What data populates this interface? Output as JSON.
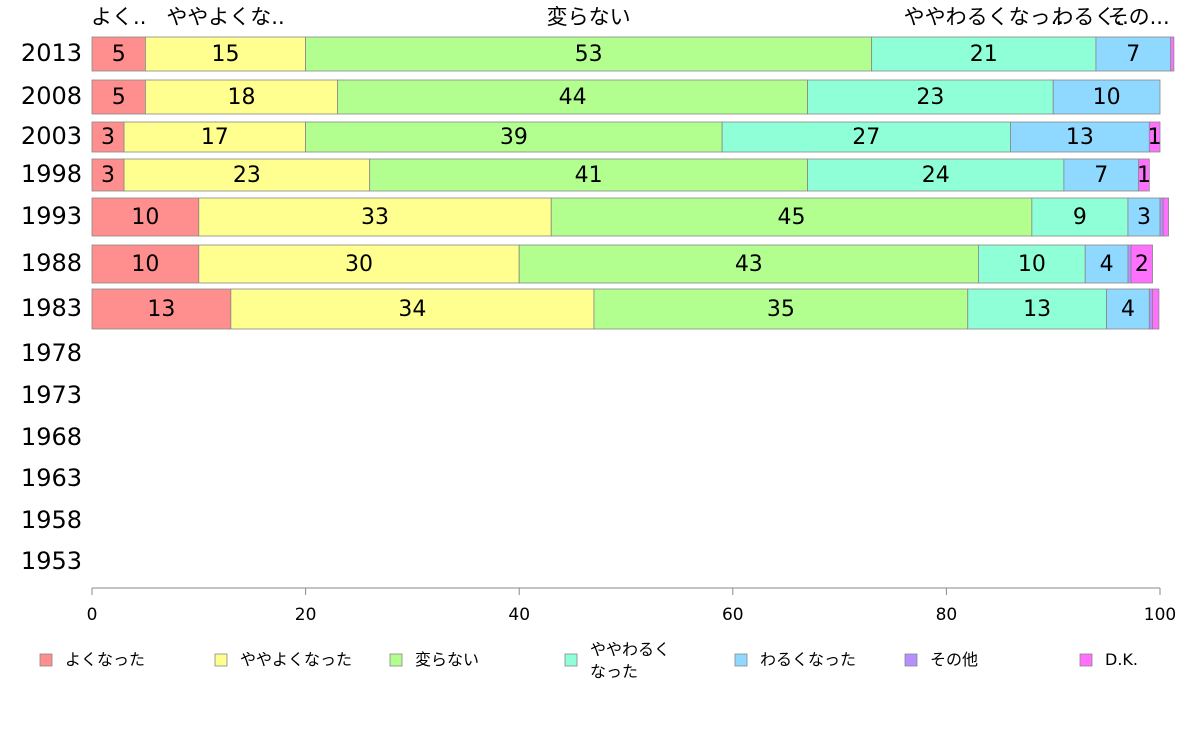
{
  "chart_data": {
    "type": "bar",
    "orientation": "horizontal",
    "stacked": true,
    "header_labels": [
      "よく..",
      "ややよくな..",
      "変らない",
      "ややわるくなっ..",
      "わるく..",
      "その..."
    ],
    "categories": [
      "2013",
      "2008",
      "2003",
      "1998",
      "1993",
      "1988",
      "1983",
      "1978",
      "1973",
      "1968",
      "1963",
      "1958",
      "1953"
    ],
    "series": [
      {
        "name": "よくなった",
        "color": "#FF8F8F",
        "values": [
          5,
          5,
          3,
          3,
          10,
          10,
          13,
          null,
          null,
          null,
          null,
          null,
          null
        ]
      },
      {
        "name": "ややよくなった",
        "color": "#FFFF8F",
        "values": [
          15,
          18,
          17,
          23,
          33,
          30,
          34,
          null,
          null,
          null,
          null,
          null,
          null
        ]
      },
      {
        "name": "変らない",
        "color": "#B2FF8F",
        "values": [
          53,
          44,
          39,
          41,
          45,
          43,
          35,
          null,
          null,
          null,
          null,
          null,
          null
        ]
      },
      {
        "name": "ややわるくなった",
        "color": "#8FFFD8",
        "values": [
          21,
          23,
          27,
          24,
          9,
          10,
          13,
          null,
          null,
          null,
          null,
          null,
          null
        ]
      },
      {
        "name": "わるくなった",
        "color": "#8FD8FF",
        "values": [
          7,
          10,
          13,
          7,
          3,
          4,
          4,
          null,
          null,
          null,
          null,
          null,
          null
        ]
      },
      {
        "name": "その他",
        "color": "#B88FFF",
        "values": [
          0,
          0,
          0,
          0,
          0.3,
          0.3,
          0.3,
          null,
          null,
          null,
          null,
          null,
          null
        ]
      },
      {
        "name": "D.K.",
        "color": "#FF70FF",
        "values": [
          0.3,
          0,
          1,
          1,
          0.5,
          2,
          0.6,
          null,
          null,
          null,
          null,
          null,
          null
        ]
      }
    ],
    "xlim": [
      0,
      100
    ],
    "xticks": [
      0,
      20,
      40,
      60,
      80,
      100
    ],
    "legend": {
      "placement": "bottom",
      "labels": [
        "よくなった",
        "ややよくなった",
        "変らない",
        "ややわるく\nなった",
        "わるくなった",
        "その他",
        "D.K."
      ]
    },
    "grid": false
  }
}
